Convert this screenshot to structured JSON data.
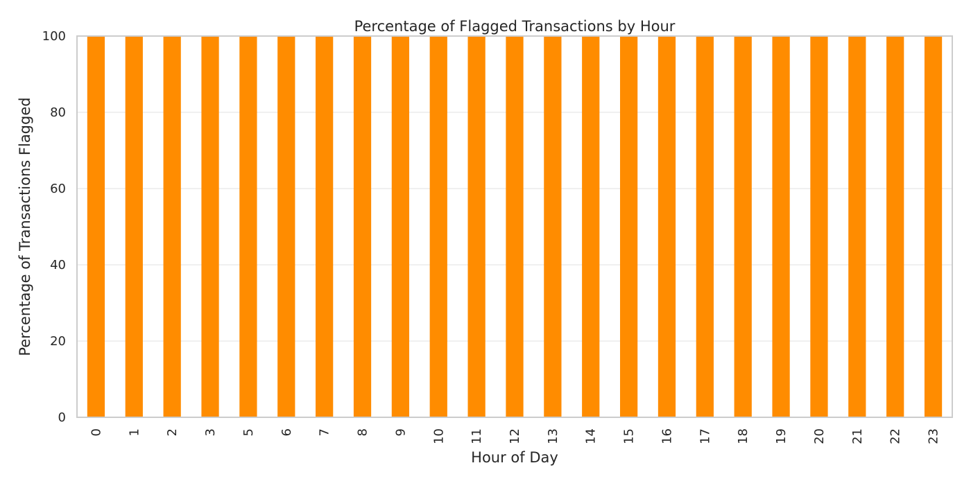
{
  "chart_data": {
    "type": "bar",
    "title": "Percentage of Flagged Transactions by Hour",
    "xlabel": "Hour of Day",
    "ylabel": "Percentage of Transactions Flagged",
    "categories": [
      "0",
      "1",
      "2",
      "3",
      "5",
      "6",
      "7",
      "8",
      "9",
      "10",
      "11",
      "12",
      "13",
      "14",
      "15",
      "16",
      "17",
      "18",
      "19",
      "20",
      "21",
      "22",
      "23"
    ],
    "values": [
      100,
      100,
      100,
      100,
      100,
      100,
      100,
      100,
      100,
      100,
      100,
      100,
      100,
      100,
      100,
      100,
      100,
      100,
      100,
      100,
      100,
      100,
      100
    ],
    "ylim": [
      0,
      100
    ],
    "yticks": [
      "0",
      "20",
      "40",
      "60",
      "80",
      "100"
    ],
    "grid": "y",
    "colors": {
      "bar": "#ff8c00",
      "grid": "#ebebeb",
      "axes_border": "#cccccc",
      "text": "#262626"
    }
  }
}
